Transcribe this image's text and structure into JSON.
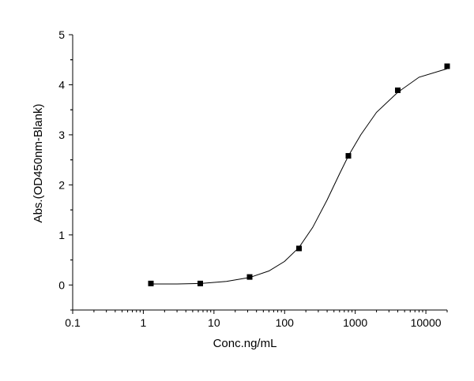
{
  "chart_data": {
    "type": "scatter",
    "title": "",
    "xlabel": "Conc.ng/mL",
    "ylabel": "Abs.(OD450nm-Blank)",
    "x_scale": "log",
    "xlim": [
      0.1,
      20000
    ],
    "ylim": [
      -0.5,
      5
    ],
    "x_ticks": [
      0.1,
      1,
      10,
      100,
      1000,
      10000
    ],
    "x_tick_labels": [
      "0.1",
      "1",
      "10",
      "100",
      "1000",
      "10000"
    ],
    "y_ticks": [
      0,
      1,
      2,
      3,
      4,
      5
    ],
    "y_tick_labels": [
      "0",
      "1",
      "2",
      "3",
      "4",
      "5"
    ],
    "grid": false,
    "series": [
      {
        "marker": "square",
        "color": "#000000",
        "x": [
          1.28,
          6.4,
          32,
          160,
          800,
          4000,
          20000
        ],
        "y": [
          0.03,
          0.03,
          0.16,
          0.73,
          2.58,
          3.89,
          4.37
        ]
      }
    ],
    "fit_curve": {
      "color": "#000000",
      "x": [
        1.28,
        3,
        6.4,
        15,
        32,
        60,
        100,
        160,
        250,
        400,
        600,
        800,
        1200,
        2000,
        4000,
        8000,
        20000
      ],
      "y": [
        0.02,
        0.02,
        0.03,
        0.07,
        0.15,
        0.28,
        0.47,
        0.75,
        1.15,
        1.7,
        2.22,
        2.58,
        3.0,
        3.45,
        3.85,
        4.15,
        4.32
      ]
    }
  }
}
